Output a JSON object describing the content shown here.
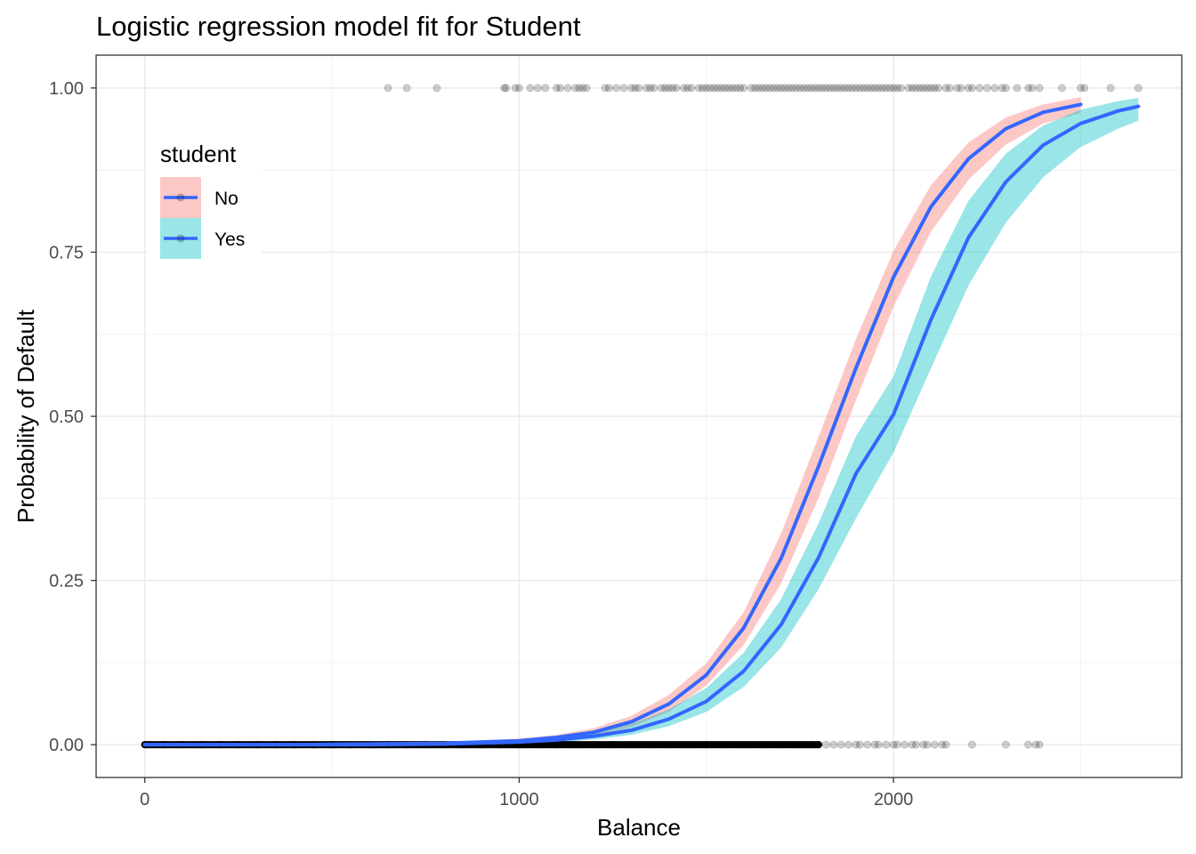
{
  "chart_data": {
    "type": "line",
    "title": "Logistic regression model fit for Student",
    "xlabel": "Balance",
    "ylabel": "Probability of Default",
    "xlim": [
      -130,
      2770
    ],
    "ylim": [
      -0.05,
      1.05
    ],
    "x_ticks": [
      0,
      1000,
      2000
    ],
    "x_tick_labels": [
      "0",
      "1000",
      "2000"
    ],
    "y_ticks": [
      0,
      0.25,
      0.5,
      0.75,
      1
    ],
    "y_tick_labels": [
      "0.00",
      "0.25",
      "0.50",
      "0.75",
      "1.00"
    ],
    "grid": true,
    "legend": {
      "title": "student",
      "position": "top-left",
      "entries": [
        {
          "label": "No",
          "ribbon_color": "#f8766d"
        },
        {
          "label": "Yes",
          "ribbon_color": "#00bfc4"
        }
      ]
    },
    "colors": {
      "line": "#3366ff",
      "ribbon_no": "#f8766d",
      "ribbon_yes": "#00bfc4",
      "points": "#000000"
    },
    "series": [
      {
        "name": "No",
        "x": [
          0,
          200,
          400,
          600,
          800,
          1000,
          1100,
          1200,
          1300,
          1400,
          1500,
          1600,
          1700,
          1800,
          1900,
          2000,
          2100,
          2200,
          2300,
          2400,
          2500
        ],
        "y": [
          0.0,
          0.0,
          0.0,
          0.001,
          0.002,
          0.006,
          0.011,
          0.019,
          0.035,
          0.062,
          0.106,
          0.178,
          0.284,
          0.424,
          0.574,
          0.712,
          0.819,
          0.892,
          0.938,
          0.963,
          0.975
        ],
        "lower": [
          0.0,
          0.0,
          0.0,
          0.0,
          0.001,
          0.004,
          0.008,
          0.014,
          0.027,
          0.05,
          0.09,
          0.152,
          0.246,
          0.376,
          0.525,
          0.667,
          0.781,
          0.86,
          0.914,
          0.946,
          0.962
        ],
        "upper": [
          0.0,
          0.0,
          0.001,
          0.002,
          0.004,
          0.009,
          0.015,
          0.025,
          0.044,
          0.076,
          0.124,
          0.202,
          0.322,
          0.469,
          0.618,
          0.752,
          0.852,
          0.917,
          0.955,
          0.975,
          0.986
        ]
      },
      {
        "name": "Yes",
        "x": [
          0,
          200,
          400,
          600,
          800,
          1000,
          1100,
          1200,
          1300,
          1400,
          1500,
          1600,
          1700,
          1800,
          1900,
          2000,
          2100,
          2200,
          2300,
          2400,
          2500,
          2600,
          2654
        ],
        "y": [
          0.0,
          0.0,
          0.0,
          0.0,
          0.001,
          0.004,
          0.007,
          0.013,
          0.022,
          0.039,
          0.066,
          0.112,
          0.183,
          0.285,
          0.413,
          0.503,
          0.647,
          0.772,
          0.857,
          0.913,
          0.946,
          0.965,
          0.972
        ],
        "lower": [
          0.0,
          0.0,
          0.0,
          0.0,
          0.0,
          0.002,
          0.004,
          0.008,
          0.015,
          0.028,
          0.05,
          0.088,
          0.148,
          0.237,
          0.345,
          0.445,
          0.573,
          0.699,
          0.795,
          0.864,
          0.91,
          0.938,
          0.95
        ],
        "upper": [
          0.0,
          0.0,
          0.0,
          0.001,
          0.003,
          0.007,
          0.012,
          0.02,
          0.032,
          0.054,
          0.086,
          0.14,
          0.222,
          0.337,
          0.47,
          0.561,
          0.713,
          0.828,
          0.9,
          0.943,
          0.967,
          0.98,
          0.985
        ]
      }
    ],
    "points_default_yes": [
      650,
      700,
      780,
      960,
      965,
      990,
      1000,
      1030,
      1050,
      1070,
      1100,
      1110,
      1130,
      1150,
      1160,
      1170,
      1180,
      1230,
      1240,
      1260,
      1280,
      1300,
      1310,
      1320,
      1340,
      1350,
      1360,
      1380,
      1390,
      1400,
      1410,
      1420,
      1440,
      1450,
      1460,
      1480,
      1490,
      1500,
      1510,
      1520,
      1530,
      1540,
      1550,
      1560,
      1570,
      1580,
      1590,
      1600,
      1620,
      1630,
      1640,
      1650,
      1660,
      1670,
      1680,
      1690,
      1700,
      1710,
      1720,
      1730,
      1740,
      1750,
      1760,
      1770,
      1780,
      1790,
      1800,
      1810,
      1820,
      1830,
      1840,
      1850,
      1860,
      1870,
      1880,
      1890,
      1900,
      1910,
      1920,
      1930,
      1940,
      1950,
      1960,
      1970,
      1980,
      1990,
      2000,
      2010,
      2020,
      2040,
      2050,
      2060,
      2070,
      2080,
      2090,
      2100,
      2110,
      2120,
      2140,
      2150,
      2170,
      2180,
      2200,
      2210,
      2230,
      2250,
      2270,
      2290,
      2300,
      2330,
      2360,
      2370,
      2390,
      2450,
      2500,
      2510,
      2580,
      2654
    ],
    "points_default_no": [
      0,
      50,
      100,
      150,
      200,
      250,
      300,
      350,
      400,
      450,
      500,
      550,
      600,
      650,
      700,
      750,
      800,
      850,
      900,
      950,
      1000,
      1050,
      1100,
      1150,
      1200,
      1250,
      1300,
      1350,
      1400,
      1450,
      1500,
      1550,
      1600,
      1650,
      1700,
      1750,
      1780,
      1800,
      1820,
      1840,
      1860,
      1880,
      1900,
      1910,
      1930,
      1950,
      1960,
      1980,
      2000,
      2010,
      2030,
      2050,
      2060,
      2080,
      2090,
      2110,
      2130,
      2140,
      2210,
      2300,
      2360,
      2380,
      2390
    ]
  }
}
